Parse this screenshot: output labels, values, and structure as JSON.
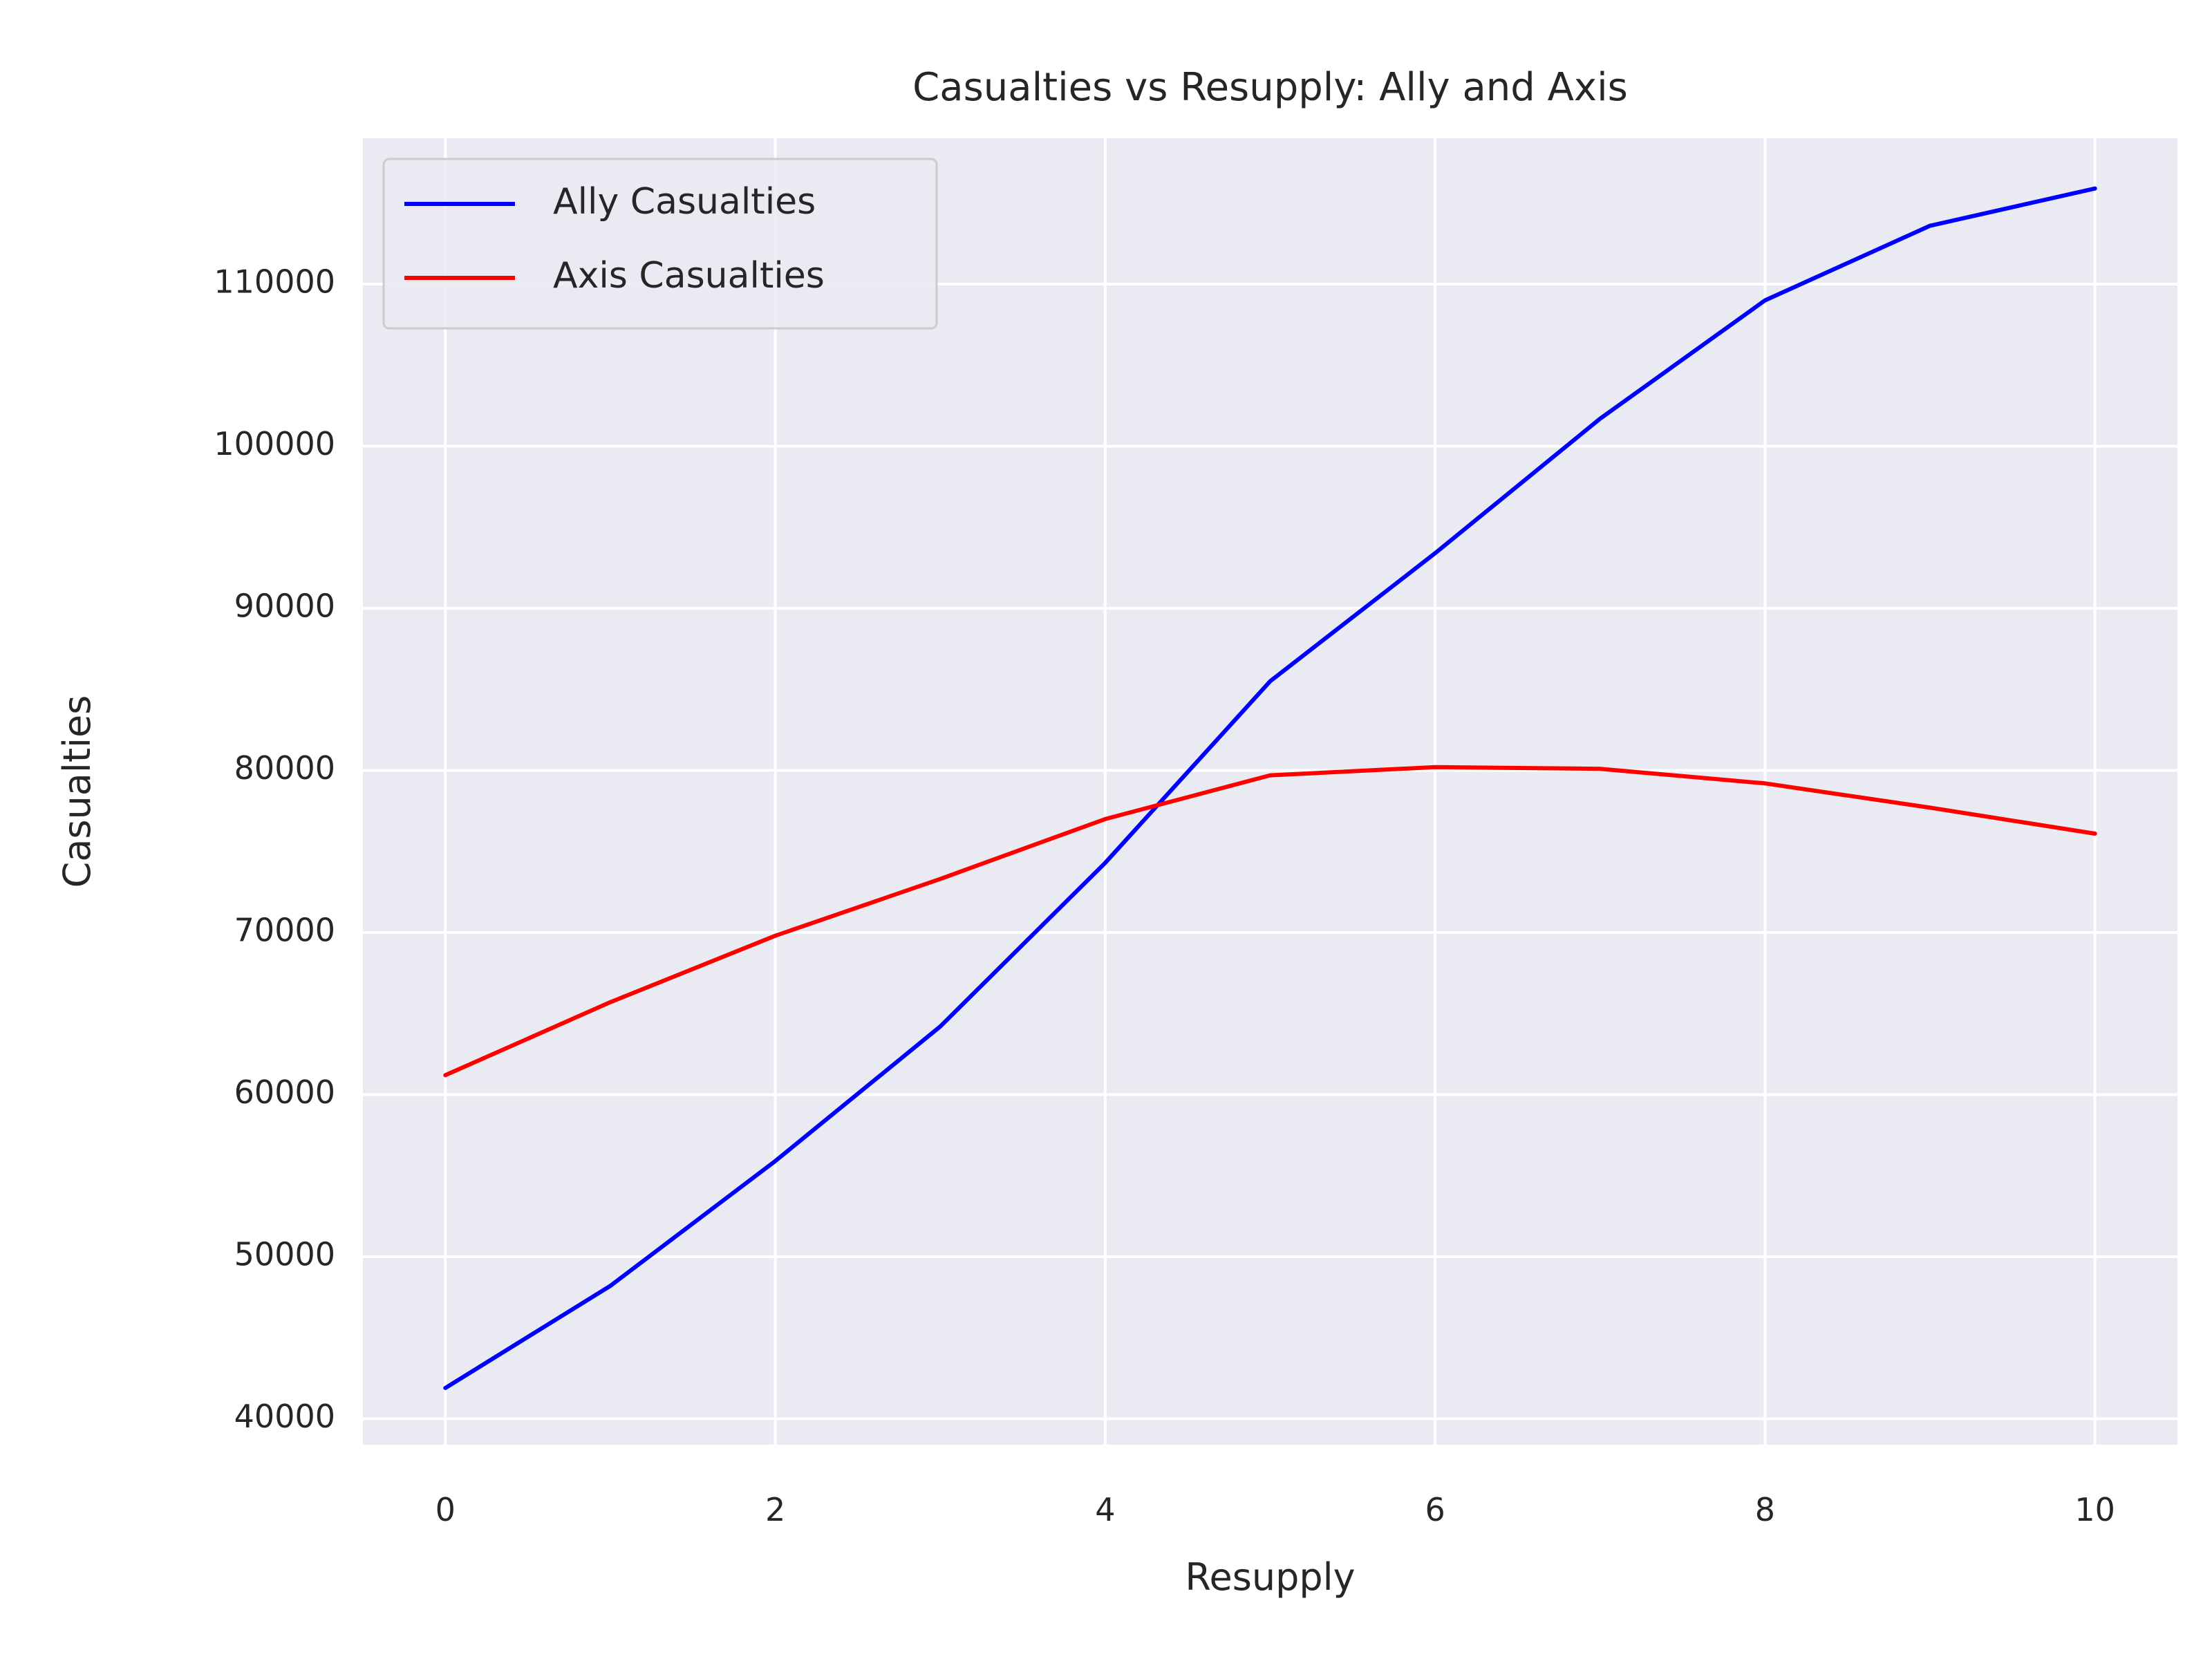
{
  "chart_data": {
    "type": "line",
    "title": "Casualties vs Resupply: Ally and Axis",
    "xlabel": "Resupply",
    "ylabel": "Casualties",
    "x": [
      0,
      1,
      2,
      3,
      4,
      5,
      6,
      7,
      8,
      9,
      10
    ],
    "xlim": [
      -0.5,
      10.5
    ],
    "ylim": [
      38400,
      119000
    ],
    "xticks": [
      0,
      2,
      4,
      6,
      8,
      10
    ],
    "yticks": [
      40000,
      50000,
      60000,
      70000,
      80000,
      90000,
      100000,
      110000
    ],
    "xtick_labels": [
      "0",
      "2",
      "4",
      "6",
      "8",
      "10"
    ],
    "ytick_labels": [
      "40000",
      "50000",
      "60000",
      "70000",
      "80000",
      "90000",
      "100000",
      "110000"
    ],
    "grid": true,
    "legend_position": "top-left",
    "background_color": "#eaeaf2",
    "grid_color": "#ffffff",
    "series": [
      {
        "name": "Ally Casualties",
        "color": "#0000ff",
        "values": [
          41900,
          48200,
          55900,
          64200,
          74300,
          85500,
          93400,
          101700,
          109000,
          113600,
          115900
        ]
      },
      {
        "name": "Axis Casualties",
        "color": "#ff0000",
        "values": [
          61200,
          65700,
          69800,
          73300,
          77000,
          79700,
          80200,
          80100,
          79200,
          77700,
          76100
        ]
      }
    ]
  }
}
